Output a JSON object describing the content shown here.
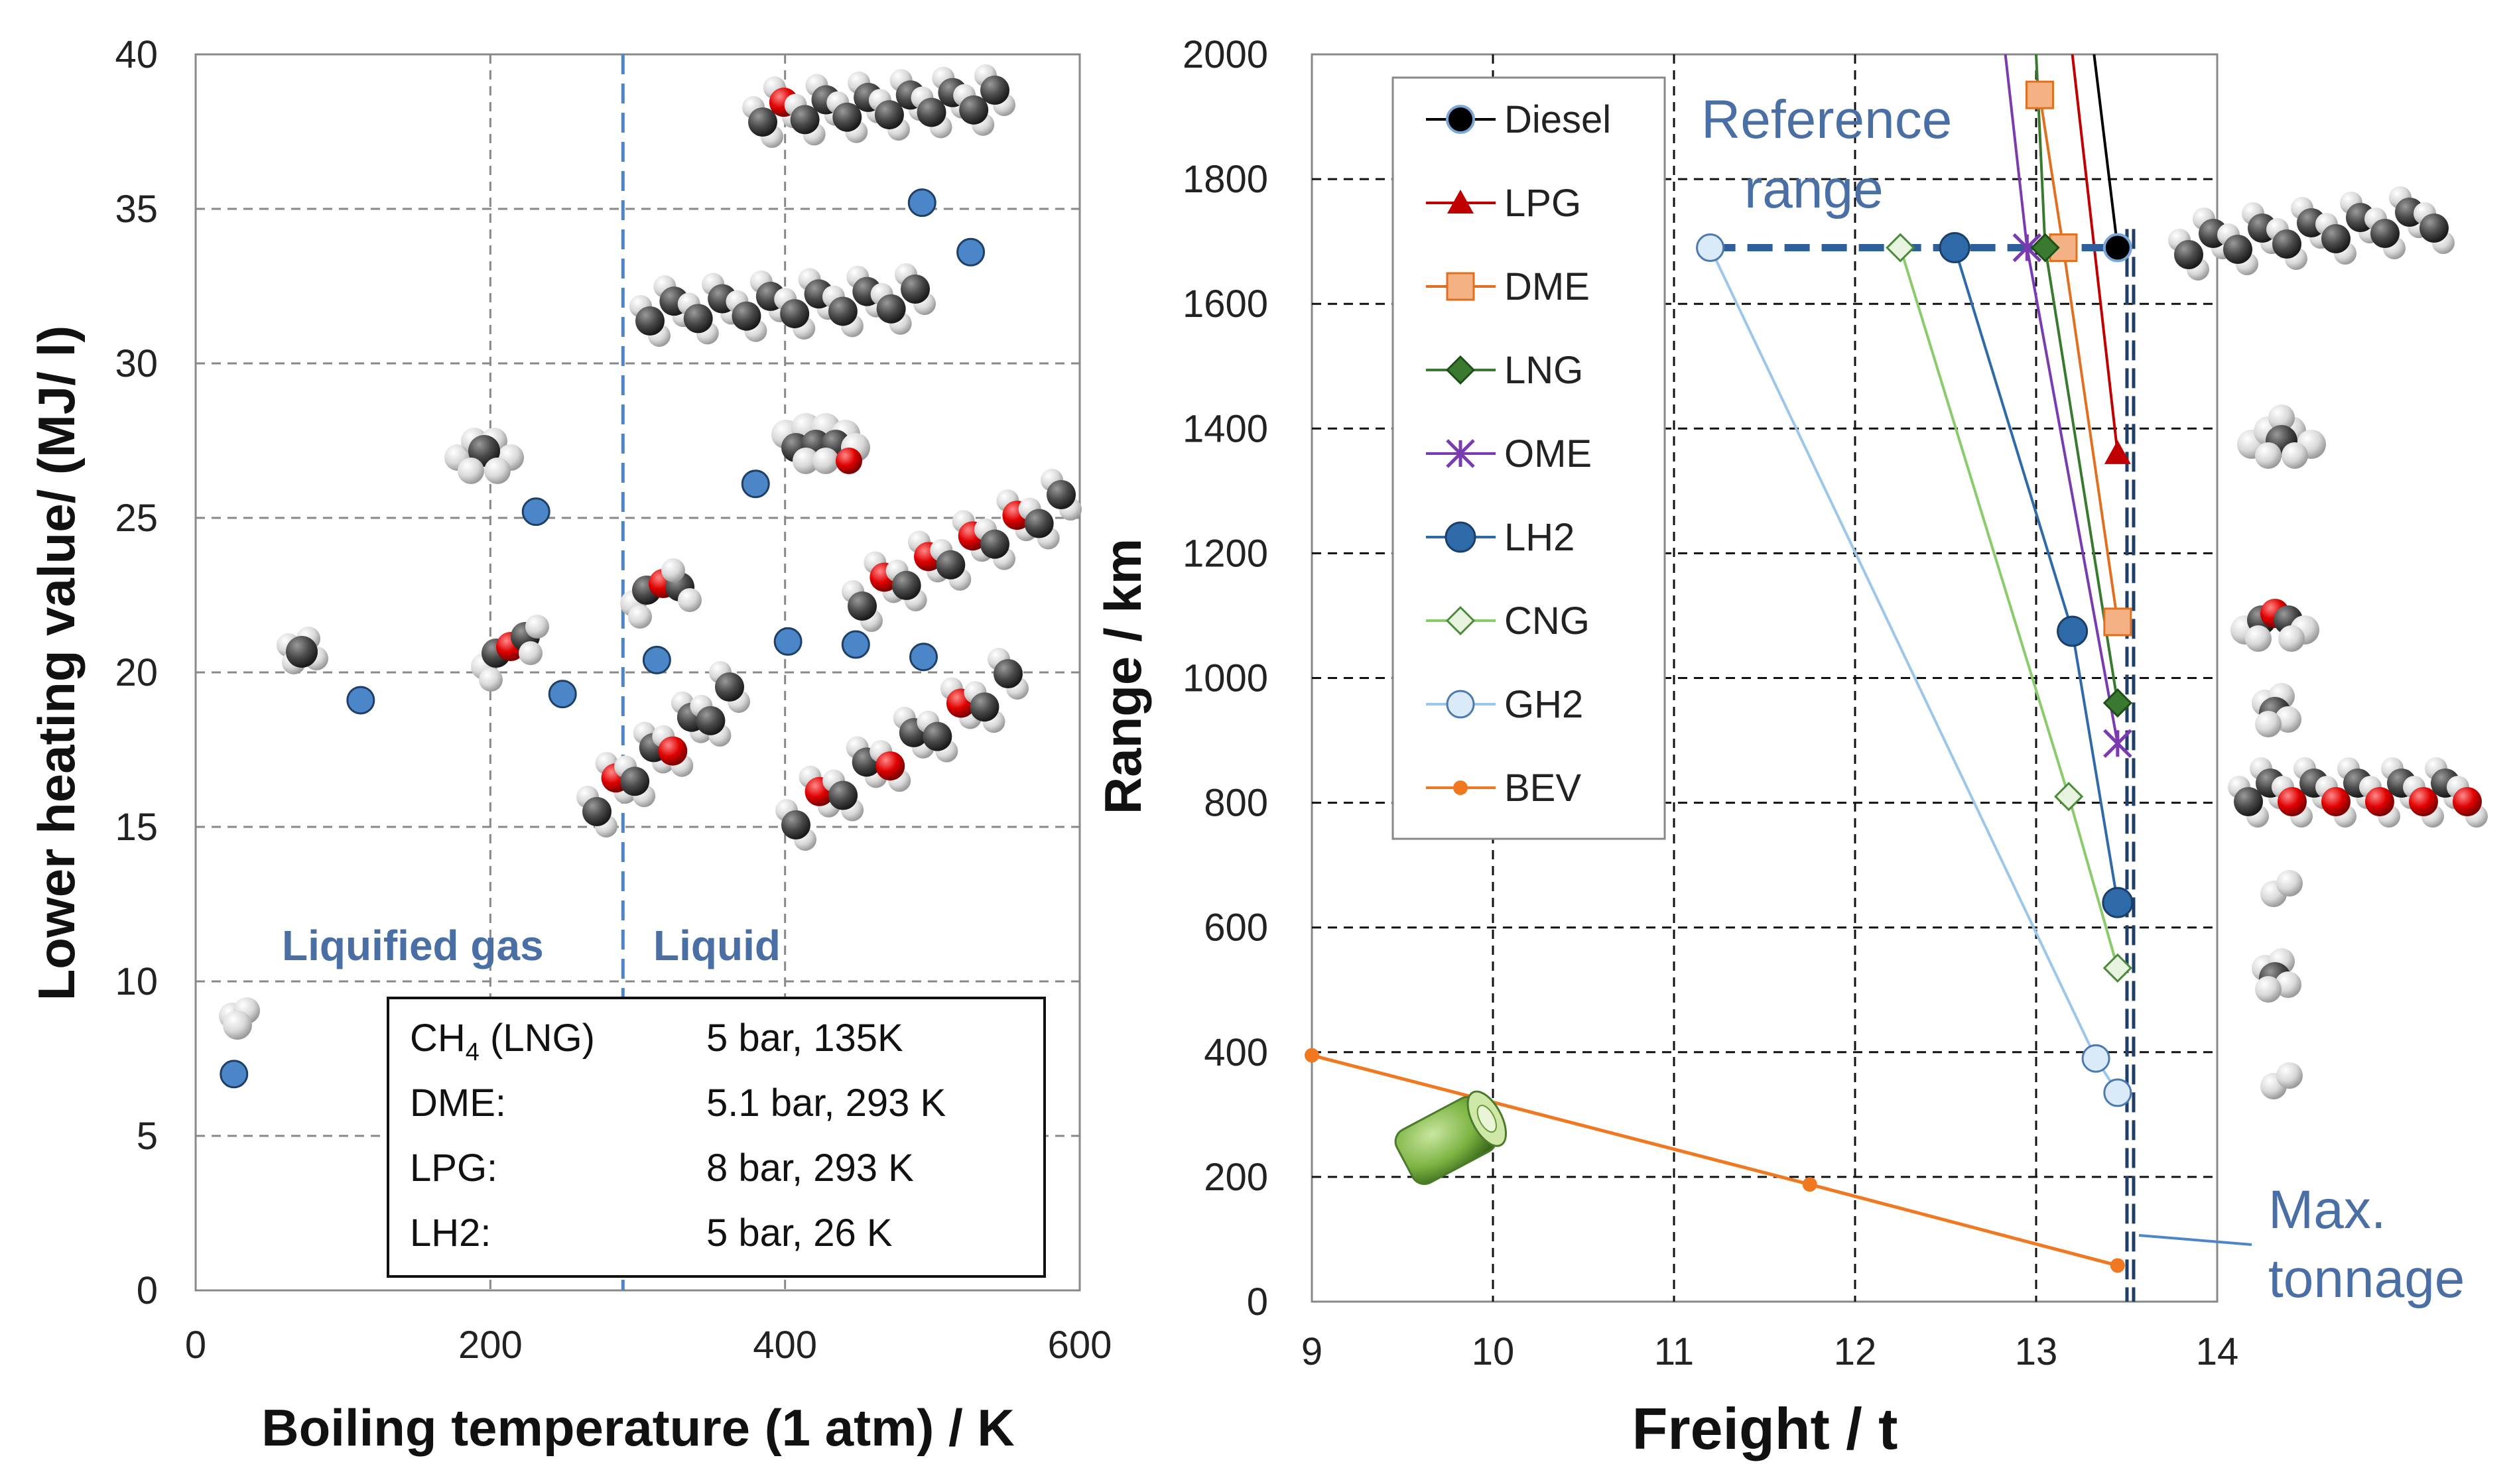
{
  "colors": {
    "blue_point": "#4a86c8",
    "region_label": "#4a6fa5",
    "dashed_boundary": "#4a86c8"
  },
  "chart_data": [
    {
      "type": "scatter",
      "xlabel": "Boiling temperature (1 atm) / K",
      "ylabel": "Lower heating value/ (MJ/ l)",
      "xlim": [
        0,
        600
      ],
      "ylim": [
        0,
        40
      ],
      "xticks": [
        "0",
        "200",
        "400",
        "600"
      ],
      "yticks": [
        "0",
        "5",
        "10",
        "15",
        "20",
        "25",
        "30",
        "35",
        "40"
      ],
      "grid": true,
      "region_boundary_x": 290,
      "regions": [
        "Liquified gas",
        "Liquid"
      ],
      "points": [
        {
          "x": 26,
          "y": 7.0
        },
        {
          "x": 112,
          "y": 19.1
        },
        {
          "x": 231,
          "y": 25.2
        },
        {
          "x": 249,
          "y": 19.3
        },
        {
          "x": 313,
          "y": 20.4
        },
        {
          "x": 380,
          "y": 26.1
        },
        {
          "x": 402,
          "y": 21.0
        },
        {
          "x": 448,
          "y": 20.9
        },
        {
          "x": 494,
          "y": 20.5
        },
        {
          "x": 493,
          "y": 35.2
        },
        {
          "x": 526,
          "y": 33.6
        }
      ],
      "table": [
        {
          "name_main": "CH",
          "name_sub": "4",
          "name_rest": " (LNG)",
          "cond": "5 bar, 135K"
        },
        {
          "name_main": "DME:",
          "name_sub": "",
          "name_rest": "",
          "cond": "5.1 bar, 293 K"
        },
        {
          "name_main": "LPG:",
          "name_sub": "",
          "name_rest": "",
          "cond": "8 bar, 293 K"
        },
        {
          "name_main": "LH2:",
          "name_sub": "",
          "name_rest": "",
          "cond": "5  bar, 26 K"
        }
      ]
    },
    {
      "type": "line",
      "xlabel": "Freight / t",
      "ylabel": "Range / km",
      "xlim": [
        9,
        14
      ],
      "ylim": [
        0,
        2000
      ],
      "xticks": [
        "9",
        "10",
        "11",
        "12",
        "13",
        "14"
      ],
      "yticks": [
        "0",
        "200",
        "400",
        "600",
        "800",
        "1000",
        "1200",
        "1400",
        "1600",
        "1800",
        "2000"
      ],
      "grid": true,
      "legend": "top-left",
      "reference_range": {
        "y": 1690,
        "x_start": 11.2,
        "x_end": 13.52,
        "label": "Reference range"
      },
      "max_tonnage": {
        "x": 13.52,
        "label": "Max. tonnage"
      },
      "series": [
        {
          "name": "Diesel",
          "color": "#000000",
          "marker": "circle",
          "x": [
            13.32,
            13.45
          ],
          "y": [
            2000,
            1690
          ]
        },
        {
          "name": "LPG",
          "color": "#c00000",
          "marker": "triangle",
          "x": [
            13.2,
            13.45
          ],
          "y": [
            2000,
            1360
          ]
        },
        {
          "name": "DME",
          "color": "#e07020",
          "marker": "square",
          "x": [
            13.02,
            13.15,
            13.45
          ],
          "y": [
            1935,
            1690,
            1090
          ]
        },
        {
          "name": "LNG",
          "color": "#3a7a30",
          "marker": "diamond",
          "x": [
            13.0,
            13.05,
            13.45
          ],
          "y": [
            2000,
            1690,
            960
          ]
        },
        {
          "name": "OME",
          "color": "#7a3ab0",
          "marker": "star",
          "x": [
            12.83,
            12.95,
            13.45
          ],
          "y": [
            2000,
            1690,
            895
          ]
        },
        {
          "name": "LH2",
          "color": "#2e6aa8",
          "marker": "circle-filled",
          "x": [
            12.55,
            13.2,
            13.45
          ],
          "y": [
            1690,
            1075,
            640
          ]
        },
        {
          "name": "CNG",
          "color": "#8acb6a",
          "marker": "diamond-open",
          "x": [
            12.25,
            13.18,
            13.45
          ],
          "y": [
            1690,
            810,
            535
          ]
        },
        {
          "name": "GH2",
          "color": "#9cc6ea",
          "marker": "circle-open",
          "x": [
            11.2,
            13.33,
            13.45
          ],
          "y": [
            1690,
            390,
            335
          ]
        },
        {
          "name": "BEV",
          "color": "#f07820",
          "marker": "dot",
          "x": [
            9.0,
            11.75,
            13.45
          ],
          "y": [
            395,
            188,
            58
          ]
        }
      ]
    }
  ]
}
